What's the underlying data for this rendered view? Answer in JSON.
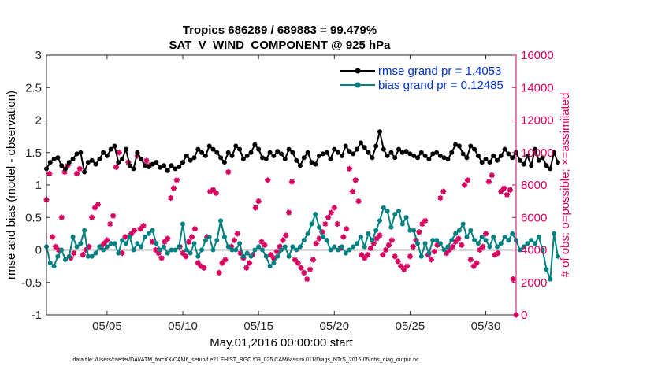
{
  "chart_data": {
    "type": "line",
    "title": "Tropics 686289 / 689883 = 99.479%",
    "subtitle": "SAT_V_WIND_COMPONENT @ 925 hPa",
    "xlabel": "May.01,2016 00:00:00 start",
    "ylabel_left": "rmse and bias (model - observation)",
    "ylabel_right": "# of obs: o=possible; ×=assimilated",
    "footnote": "data file: /Users/raeder/DAI/ATM_forcXX/CAM6_setup/f.e21.FHIST_BGC.f09_025.CAM6assim.011/Diags_NTrS_2016-05/obs_diag_output.nc",
    "xlim": [
      1,
      32
    ],
    "ylim_left": [
      -1,
      3
    ],
    "ylim_right": [
      0,
      16000
    ],
    "x_ticks": [
      5,
      10,
      15,
      20,
      25,
      30
    ],
    "x_tick_labels": [
      "05/05",
      "05/10",
      "05/15",
      "05/20",
      "05/25",
      "05/30"
    ],
    "y_left_ticks": [
      -1,
      -0.5,
      0,
      0.5,
      1,
      1.5,
      2,
      2.5,
      3
    ],
    "y_left_tick_labels": [
      "-1",
      "-0.5",
      "0",
      "0.5",
      "1",
      "1.5",
      "2",
      "2.5",
      "3"
    ],
    "y_right_ticks": [
      0,
      2000,
      4000,
      6000,
      8000,
      10000,
      12000,
      14000,
      16000
    ],
    "y_right_tick_labels": [
      "0",
      "2000",
      "4000",
      "6000",
      "8000",
      "10000",
      "12000",
      "14000",
      "16000"
    ],
    "zero_line": 0,
    "legend_position": "top-right",
    "grid": false,
    "colors": {
      "rmse": "#000000",
      "bias": "#008080",
      "obs": "#d6005f",
      "zero": "#b0b0b0"
    },
    "series": [
      {
        "name": "rmse grand pr = 1.4053",
        "axis": "left",
        "x_start": 1.0,
        "x_step": 0.25,
        "values": [
          1.25,
          1.35,
          1.4,
          1.42,
          1.3,
          1.25,
          1.35,
          1.4,
          1.48,
          1.5,
          1.2,
          1.35,
          1.38,
          1.32,
          1.4,
          1.5,
          1.45,
          1.55,
          1.6,
          1.35,
          1.4,
          1.55,
          1.3,
          1.25,
          1.5,
          1.4,
          1.3,
          1.28,
          1.32,
          1.35,
          1.27,
          1.3,
          1.22,
          1.3,
          1.25,
          1.28,
          1.35,
          1.45,
          1.38,
          1.42,
          1.55,
          1.5,
          1.45,
          1.6,
          1.55,
          1.5,
          1.42,
          1.35,
          1.5,
          1.45,
          1.6,
          1.55,
          1.4,
          1.45,
          1.5,
          1.62,
          1.55,
          1.42,
          1.4,
          1.5,
          1.45,
          1.52,
          1.48,
          1.4,
          1.55,
          1.5,
          1.38,
          1.3,
          1.42,
          1.5,
          1.35,
          1.32,
          1.45,
          1.48,
          1.5,
          1.4,
          1.55,
          1.5,
          1.45,
          1.6,
          1.52,
          1.48,
          1.55,
          1.65,
          1.58,
          1.5,
          1.42,
          1.6,
          1.82,
          1.55,
          1.45,
          1.5,
          1.42,
          1.55,
          1.5,
          1.52,
          1.48,
          1.45,
          1.42,
          1.5,
          1.45,
          1.4,
          1.48,
          1.5,
          1.45,
          1.42,
          1.4,
          1.5,
          1.62,
          1.6,
          1.48,
          1.42,
          1.6,
          1.55,
          1.45,
          1.35,
          1.4,
          1.35,
          1.45,
          1.38,
          1.45,
          1.55,
          1.48,
          1.42,
          1.5,
          1.38,
          1.32,
          1.45,
          1.3,
          1.55,
          1.38,
          1.42,
          1.3,
          1.25,
          1.5,
          1.35
        ]
      },
      {
        "name": "bias grand pr = 0.12485",
        "axis": "left",
        "x_start": 1.0,
        "x_step": 0.25,
        "values": [
          0.05,
          -0.2,
          -0.25,
          -0.1,
          0.0,
          -0.15,
          -0.1,
          0.2,
          0.05,
          0.1,
          0.3,
          -0.1,
          -0.1,
          -0.05,
          0.05,
          0.0,
          0.05,
          0.1,
          0.1,
          -0.05,
          0.15,
          0.1,
          0.2,
          0.0,
          0.1,
          0.05,
          0.2,
          0.25,
          0.3,
          0.1,
          0.0,
          0.05,
          -0.05,
          0.0,
          0.0,
          0.05,
          0.4,
          0.0,
          -0.05,
          0.1,
          -0.1,
          0.0,
          0.15,
          0.2,
          0.0,
          0.15,
          0.45,
          0.2,
          0.05,
          0.0,
          0.0,
          0.1,
          -0.1,
          -0.05,
          -0.1,
          0.0,
          0.05,
          0.0,
          -0.1,
          -0.25,
          -0.2,
          -0.1,
          0.0,
          0.05,
          -0.1,
          0.05,
          0.0,
          0.05,
          0.15,
          0.25,
          0.4,
          0.55,
          0.35,
          0.2,
          0.15,
          0.0,
          0.05,
          0.0,
          0.05,
          -0.05,
          0.0,
          0.05,
          0.1,
          0.2,
          0.05,
          0.25,
          0.15,
          0.3,
          0.45,
          0.65,
          0.6,
          0.35,
          0.55,
          0.6,
          0.4,
          0.5,
          0.3,
          0.3,
          0.1,
          -0.1,
          0.1,
          -0.05,
          0.15,
          0.15,
          0.1,
          0.0,
          0.05,
          0.15,
          0.25,
          0.3,
          0.4,
          0.2,
          0.3,
          0.15,
          0.1,
          0.2,
          0.15,
          0.05,
          0.2,
          0.05,
          0.1,
          0.2,
          0.15,
          0.25,
          0.15,
          0.0,
          0.05,
          0.1,
          0.15,
          0.1,
          0.2,
          0.0,
          -0.3,
          -0.45,
          0.25,
          -0.1
        ]
      },
      {
        "name": "obs",
        "axis": "right",
        "markers": "x",
        "points": [
          [
            1.0,
            7100
          ],
          [
            1.2,
            8700
          ],
          [
            1.4,
            4800
          ],
          [
            1.6,
            4200
          ],
          [
            1.8,
            4000
          ],
          [
            2.0,
            6000
          ],
          [
            2.2,
            8800
          ],
          [
            2.4,
            9200
          ],
          [
            2.6,
            3500
          ],
          [
            2.8,
            3800
          ],
          [
            3.0,
            8700
          ],
          [
            3.2,
            9000
          ],
          [
            3.4,
            3700
          ],
          [
            3.6,
            4000
          ],
          [
            3.8,
            4200
          ],
          [
            4.0,
            6000
          ],
          [
            4.2,
            6600
          ],
          [
            4.4,
            6800
          ],
          [
            4.6,
            4200
          ],
          [
            4.8,
            4400
          ],
          [
            5.0,
            4600
          ],
          [
            5.2,
            5600
          ],
          [
            5.4,
            6100
          ],
          [
            5.6,
            9100
          ],
          [
            5.8,
            10000
          ],
          [
            6.0,
            3800
          ],
          [
            6.2,
            4800
          ],
          [
            6.4,
            9400
          ],
          [
            6.6,
            5000
          ],
          [
            6.8,
            5200
          ],
          [
            7.0,
            9800
          ],
          [
            7.2,
            5300
          ],
          [
            7.4,
            5500
          ],
          [
            7.6,
            9500
          ],
          [
            7.8,
            9200
          ],
          [
            8.0,
            4500
          ],
          [
            8.2,
            4000
          ],
          [
            8.4,
            3800
          ],
          [
            8.6,
            3500
          ],
          [
            8.8,
            4500
          ],
          [
            9.0,
            4700
          ],
          [
            9.2,
            7200
          ],
          [
            9.4,
            7800
          ],
          [
            9.6,
            8300
          ],
          [
            9.8,
            4200
          ],
          [
            10.0,
            3800
          ],
          [
            10.2,
            3600
          ],
          [
            10.4,
            4500
          ],
          [
            10.6,
            4800
          ],
          [
            10.8,
            5300
          ],
          [
            11.0,
            3200
          ],
          [
            11.2,
            3000
          ],
          [
            11.4,
            2900
          ],
          [
            11.6,
            4800
          ],
          [
            11.8,
            7600
          ],
          [
            12.0,
            7700
          ],
          [
            12.2,
            7500
          ],
          [
            12.4,
            2600
          ],
          [
            12.6,
            3200
          ],
          [
            12.8,
            3400
          ],
          [
            13.0,
            8800
          ],
          [
            13.2,
            4200
          ],
          [
            13.4,
            4600
          ],
          [
            13.6,
            5000
          ],
          [
            13.8,
            3800
          ],
          [
            14.0,
            3500
          ],
          [
            14.2,
            2900
          ],
          [
            14.4,
            3200
          ],
          [
            14.6,
            3700
          ],
          [
            14.8,
            6600
          ],
          [
            15.0,
            7000
          ],
          [
            15.2,
            4500
          ],
          [
            15.4,
            4300
          ],
          [
            15.6,
            8300
          ],
          [
            15.8,
            3700
          ],
          [
            16.0,
            3500
          ],
          [
            16.2,
            3900
          ],
          [
            16.4,
            4200
          ],
          [
            16.6,
            4600
          ],
          [
            16.8,
            4900
          ],
          [
            17.0,
            6300
          ],
          [
            17.2,
            8200
          ],
          [
            17.4,
            3400
          ],
          [
            17.6,
            3200
          ],
          [
            17.8,
            2900
          ],
          [
            18.0,
            2600
          ],
          [
            18.2,
            2200
          ],
          [
            18.4,
            2800
          ],
          [
            18.6,
            3400
          ],
          [
            18.8,
            4400
          ],
          [
            19.0,
            4700
          ],
          [
            19.2,
            5100
          ],
          [
            19.4,
            5600
          ],
          [
            19.6,
            6000
          ],
          [
            19.8,
            6300
          ],
          [
            20.0,
            6600
          ],
          [
            20.2,
            5600
          ],
          [
            20.4,
            4100
          ],
          [
            20.6,
            4800
          ],
          [
            20.8,
            5300
          ],
          [
            21.0,
            9000
          ],
          [
            21.2,
            7600
          ],
          [
            21.4,
            8300
          ],
          [
            21.6,
            7000
          ],
          [
            21.8,
            3700
          ],
          [
            22.0,
            3500
          ],
          [
            22.2,
            3700
          ],
          [
            22.4,
            4100
          ],
          [
            22.6,
            4400
          ],
          [
            22.8,
            4700
          ],
          [
            23.0,
            4900
          ],
          [
            23.2,
            3700
          ],
          [
            23.4,
            4000
          ],
          [
            23.6,
            4300
          ],
          [
            23.8,
            4600
          ],
          [
            24.0,
            3600
          ],
          [
            24.2,
            3300
          ],
          [
            24.4,
            3000
          ],
          [
            24.6,
            2800
          ],
          [
            24.8,
            3000
          ],
          [
            25.0,
            3600
          ],
          [
            25.2,
            4200
          ],
          [
            25.4,
            4600
          ],
          [
            25.6,
            5100
          ],
          [
            25.8,
            5600
          ],
          [
            26.0,
            5800
          ],
          [
            26.2,
            3700
          ],
          [
            26.4,
            3400
          ],
          [
            26.6,
            3900
          ],
          [
            26.8,
            4300
          ],
          [
            27.0,
            7200
          ],
          [
            27.2,
            7600
          ],
          [
            27.4,
            3800
          ],
          [
            27.6,
            4000
          ],
          [
            27.8,
            4200
          ],
          [
            28.0,
            4500
          ],
          [
            28.2,
            4700
          ],
          [
            28.4,
            4300
          ],
          [
            28.6,
            8000
          ],
          [
            28.8,
            8300
          ],
          [
            29.0,
            3400
          ],
          [
            29.2,
            3000
          ],
          [
            29.4,
            3200
          ],
          [
            29.6,
            4000
          ],
          [
            29.8,
            4200
          ],
          [
            30.0,
            5000
          ],
          [
            30.2,
            8200
          ],
          [
            30.4,
            8600
          ],
          [
            30.6,
            3700
          ],
          [
            30.8,
            3800
          ],
          [
            31.0,
            7600
          ],
          [
            31.2,
            7800
          ],
          [
            31.4,
            7400
          ],
          [
            31.6,
            7700
          ],
          [
            31.8,
            2200
          ],
          [
            32.0,
            0
          ]
        ]
      }
    ]
  }
}
